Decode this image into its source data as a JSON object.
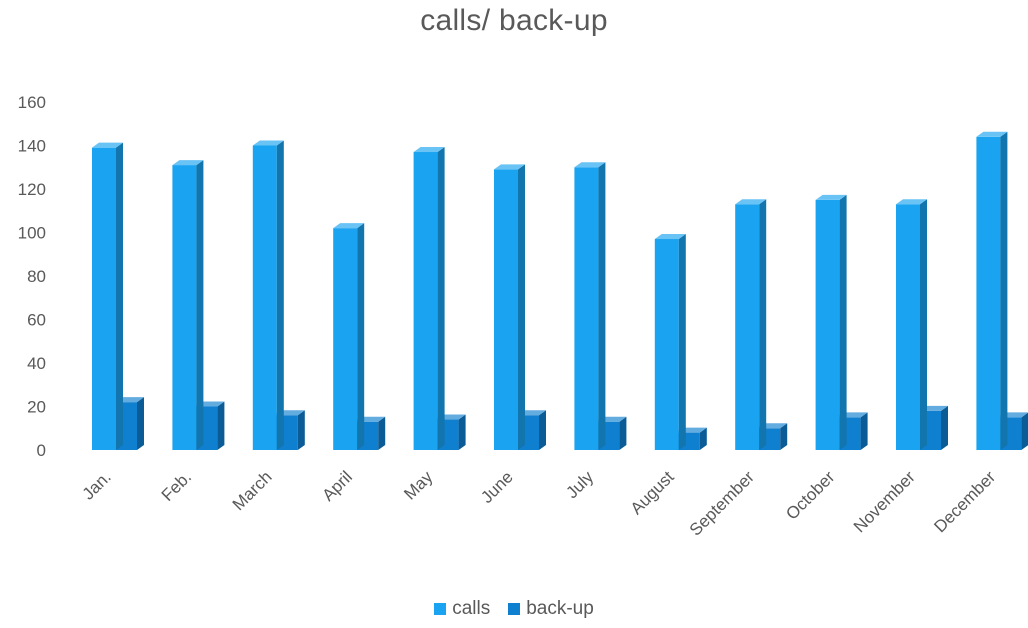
{
  "chart_data": {
    "type": "bar",
    "title": "calls/ back-up",
    "categories": [
      "Jan.",
      "Feb.",
      "March",
      "April",
      "May",
      "June",
      "July",
      "August",
      "September",
      "October",
      "November",
      "December"
    ],
    "series": [
      {
        "name": "calls",
        "values": [
          139,
          131,
          140,
          102,
          137,
          129,
          130,
          97,
          113,
          115,
          113,
          144
        ],
        "color": "#1aa3f0"
      },
      {
        "name": "back-up",
        "values": [
          22,
          20,
          16,
          13,
          14,
          16,
          13,
          8,
          10,
          15,
          18,
          15
        ],
        "color": "#0f7fd0"
      }
    ],
    "ylim": [
      0,
      160
    ],
    "yticks": [
      0,
      20,
      40,
      60,
      80,
      100,
      120,
      140,
      160
    ],
    "grid": false,
    "legend": "bottom",
    "style": "3d-column"
  }
}
